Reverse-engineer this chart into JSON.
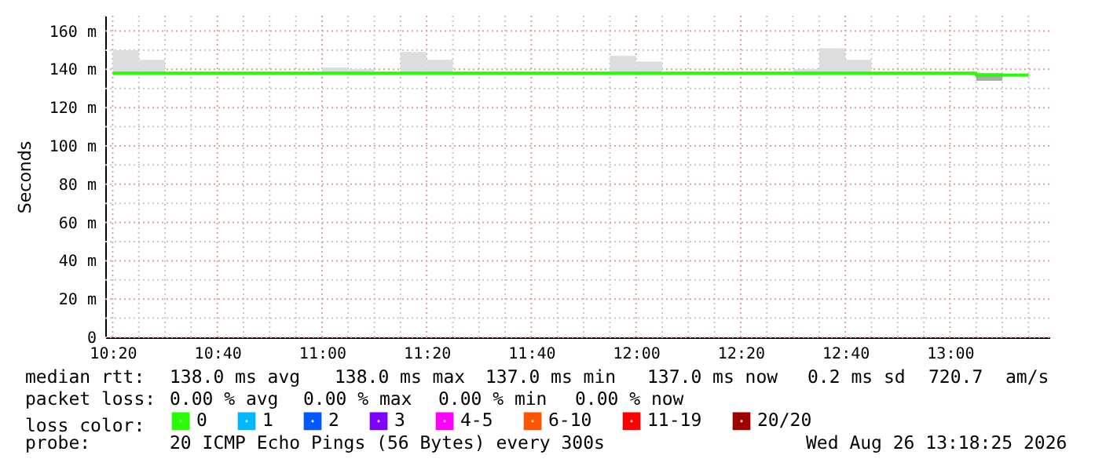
{
  "chart_data": {
    "type": "step",
    "ylabel": "Seconds",
    "legend_title": "loss color:",
    "legend": "bottom",
    "grid": true,
    "xlim": [
      "2026-08-26T10:18:35",
      "2026-08-26T13:19"
    ],
    "xticks": [
      {
        "value": "2026-08-26T10:20",
        "label": "10:20"
      },
      {
        "value": "2026-08-26T10:25",
        "label": null
      },
      {
        "value": "2026-08-26T10:30",
        "label": null
      },
      {
        "value": "2026-08-26T10:35",
        "label": null
      },
      {
        "value": "2026-08-26T10:40",
        "label": "10:40"
      },
      {
        "value": "2026-08-26T10:45",
        "label": null
      },
      {
        "value": "2026-08-26T10:50",
        "label": null
      },
      {
        "value": "2026-08-26T10:55",
        "label": null
      },
      {
        "value": "2026-08-26T11:00",
        "label": "11:00"
      },
      {
        "value": "2026-08-26T11:05",
        "label": null
      },
      {
        "value": "2026-08-26T11:10",
        "label": null
      },
      {
        "value": "2026-08-26T11:15",
        "label": null
      },
      {
        "value": "2026-08-26T11:20",
        "label": "11:20"
      },
      {
        "value": "2026-08-26T11:25",
        "label": null
      },
      {
        "value": "2026-08-26T11:30",
        "label": null
      },
      {
        "value": "2026-08-26T11:35",
        "label": null
      },
      {
        "value": "2026-08-26T11:40",
        "label": "11:40"
      },
      {
        "value": "2026-08-26T11:45",
        "label": null
      },
      {
        "value": "2026-08-26T11:50",
        "label": null
      },
      {
        "value": "2026-08-26T11:55",
        "label": null
      },
      {
        "value": "2026-08-26T12:00",
        "label": "12:00"
      },
      {
        "value": "2026-08-26T12:05",
        "label": null
      },
      {
        "value": "2026-08-26T12:10",
        "label": null
      },
      {
        "value": "2026-08-26T12:15",
        "label": null
      },
      {
        "value": "2026-08-26T12:20",
        "label": "12:20"
      },
      {
        "value": "2026-08-26T12:25",
        "label": null
      },
      {
        "value": "2026-08-26T12:30",
        "label": null
      },
      {
        "value": "2026-08-26T12:35",
        "label": null
      },
      {
        "value": "2026-08-26T12:40",
        "label": "12:40"
      },
      {
        "value": "2026-08-26T12:45",
        "label": null
      },
      {
        "value": "2026-08-26T12:50",
        "label": null
      },
      {
        "value": "2026-08-26T12:55",
        "label": null
      },
      {
        "value": "2026-08-26T13:00",
        "label": "13:00"
      },
      {
        "value": "2026-08-26T13:05",
        "label": null
      },
      {
        "value": "2026-08-26T13:10",
        "label": null
      },
      {
        "value": "2026-08-26T13:15",
        "label": null
      }
    ],
    "ylim": [
      0,
      168
    ],
    "yticks": [
      0,
      {
        "value": 10,
        "label": null
      },
      {
        "value": 20,
        "label": "20 m"
      },
      {
        "value": 30,
        "label": null
      },
      {
        "value": 40,
        "label": "40 m"
      },
      {
        "value": 50,
        "label": null
      },
      {
        "value": 60,
        "label": "60 m"
      },
      {
        "value": 70,
        "label": null
      },
      {
        "value": 80,
        "label": "80 m"
      },
      {
        "value": 90,
        "label": null
      },
      {
        "value": 100,
        "label": "100 m"
      },
      {
        "value": 110,
        "label": null
      },
      {
        "value": 120,
        "label": "120 m"
      },
      {
        "value": 130,
        "label": null
      },
      {
        "value": 140,
        "label": "140 m"
      },
      {
        "value": 150,
        "label": null
      },
      {
        "value": 160,
        "label": "160 m"
      }
    ],
    "x": [
      "2026-08-26T10:20",
      "2026-08-26T10:25",
      "2026-08-26T10:30",
      "2026-08-26T10:35",
      "2026-08-26T10:40",
      "2026-08-26T10:45",
      "2026-08-26T10:50",
      "2026-08-26T10:55",
      "2026-08-26T11:00",
      "2026-08-26T11:05",
      "2026-08-26T11:10",
      "2026-08-26T11:15",
      "2026-08-26T11:20",
      "2026-08-26T11:25",
      "2026-08-26T11:30",
      "2026-08-26T11:35",
      "2026-08-26T11:40",
      "2026-08-26T11:45",
      "2026-08-26T11:50",
      "2026-08-26T11:55",
      "2026-08-26T12:00",
      "2026-08-26T12:05",
      "2026-08-26T12:10",
      "2026-08-26T12:15",
      "2026-08-26T12:20",
      "2026-08-26T12:25",
      "2026-08-26T12:30",
      "2026-08-26T12:35",
      "2026-08-26T12:40",
      "2026-08-26T12:45",
      "2026-08-26T12:50",
      "2026-08-26T12:55",
      "2026-08-26T13:00",
      "2026-08-26T13:05",
      "2026-08-26T13:10",
      "2026-08-26T13:15"
    ],
    "series": [
      {
        "type": "bar",
        "x": [
          "2026-08-26T10:22:30",
          "2026-08-26T10:27:30",
          "2026-08-26T11:02:30",
          "2026-08-26T11:07:30",
          "2026-08-26T11:17:30",
          "2026-08-26T11:22:30",
          "2026-08-26T11:57:30",
          "2026-08-26T12:02:30",
          "2026-08-26T12:32:30",
          "2026-08-26T12:37:30",
          "2026-08-26T12:42:30",
          "2026-08-26T13:07:30"
        ],
        "values": [
          13,
          8,
          4,
          3,
          12,
          8,
          10,
          7,
          3,
          14,
          8,
          4
        ],
        "base": [
          137,
          137,
          137,
          137,
          137,
          137,
          137,
          137,
          137,
          137,
          137,
          134
        ],
        "colors": [
          "#dddddd",
          "#dddddd",
          "#dddddd",
          "#dddddd",
          "#dddddd",
          "#dddddd",
          "#dddddd",
          "#dddddd",
          "#dddddd",
          "#dddddd",
          "#dddddd",
          "#aaaaaa"
        ]
      },
      {
        "name": "0",
        "color": "#26ff00",
        "values": [
          138,
          138,
          138,
          138,
          138,
          138,
          138,
          138,
          138,
          138,
          138,
          138,
          138,
          138,
          138,
          138,
          138,
          138,
          138,
          138,
          138,
          138,
          138,
          138,
          138,
          138,
          138,
          138,
          138,
          138,
          138,
          138,
          138,
          137,
          137,
          137
        ]
      },
      {
        "name": "1",
        "color": "#00b8ff",
        "values": [
          null,
          null,
          null,
          null,
          null,
          null,
          null,
          null,
          null,
          null,
          null,
          null,
          null,
          null,
          null,
          null,
          null,
          null,
          null,
          null,
          null,
          null,
          null,
          null,
          null,
          null,
          null,
          null,
          null,
          null,
          null,
          null,
          null,
          null,
          null,
          null
        ]
      },
      {
        "name": "2",
        "color": "#0059ff",
        "values": [
          null,
          null,
          null,
          null,
          null,
          null,
          null,
          null,
          null,
          null,
          null,
          null,
          null,
          null,
          null,
          null,
          null,
          null,
          null,
          null,
          null,
          null,
          null,
          null,
          null,
          null,
          null,
          null,
          null,
          null,
          null,
          null,
          null,
          null,
          null,
          null
        ]
      },
      {
        "name": "3",
        "color": "#7e00ff",
        "values": [
          null,
          null,
          null,
          null,
          null,
          null,
          null,
          null,
          null,
          null,
          null,
          null,
          null,
          null,
          null,
          null,
          null,
          null,
          null,
          null,
          null,
          null,
          null,
          null,
          null,
          null,
          null,
          null,
          null,
          null,
          null,
          null,
          null,
          null,
          null,
          null
        ]
      },
      {
        "name": "4-5",
        "color": "#ff00ff",
        "values": [
          null,
          null,
          null,
          null,
          null,
          null,
          null,
          null,
          null,
          null,
          null,
          null,
          null,
          null,
          null,
          null,
          null,
          null,
          null,
          null,
          null,
          null,
          null,
          null,
          null,
          null,
          null,
          null,
          null,
          null,
          null,
          null,
          null,
          null,
          null,
          null
        ]
      },
      {
        "name": "6-10",
        "color": "#ff5500",
        "values": [
          null,
          null,
          null,
          null,
          null,
          null,
          null,
          null,
          null,
          null,
          null,
          null,
          null,
          null,
          null,
          null,
          null,
          null,
          null,
          null,
          null,
          null,
          null,
          null,
          null,
          null,
          null,
          null,
          null,
          null,
          null,
          null,
          null,
          null,
          null,
          null
        ]
      },
      {
        "name": "11-19",
        "color": "#ff0000",
        "values": [
          null,
          null,
          null,
          null,
          null,
          null,
          null,
          null,
          null,
          null,
          null,
          null,
          null,
          null,
          null,
          null,
          null,
          null,
          null,
          null,
          null,
          null,
          null,
          null,
          null,
          null,
          null,
          null,
          null,
          null,
          null,
          null,
          null,
          null,
          null,
          null
        ]
      },
      {
        "name": "20/20",
        "color": "#a10000",
        "values": [
          null,
          null,
          null,
          null,
          null,
          null,
          null,
          null,
          null,
          null,
          null,
          null,
          null,
          null,
          null,
          null,
          null,
          null,
          null,
          null,
          null,
          null,
          null,
          null,
          null,
          null,
          null,
          null,
          null,
          null,
          null,
          null,
          null,
          null,
          null,
          null
        ]
      }
    ],
    "annotations": [
      "median rtt:",
      "138.0 ms avg",
      "138.0 ms max",
      "137.0 ms min",
      "137.0 ms now",
      "0.2 ms sd",
      "720.7",
      "am/s",
      "packet loss:",
      "0.00 % avg",
      "0.00 % max",
      "0.00 % min",
      "0.00 % now",
      "probe:",
      "20 ICMP Echo Pings (56 Bytes) every 300s",
      "Wed Aug 26 13:18:25 2026"
    ]
  }
}
